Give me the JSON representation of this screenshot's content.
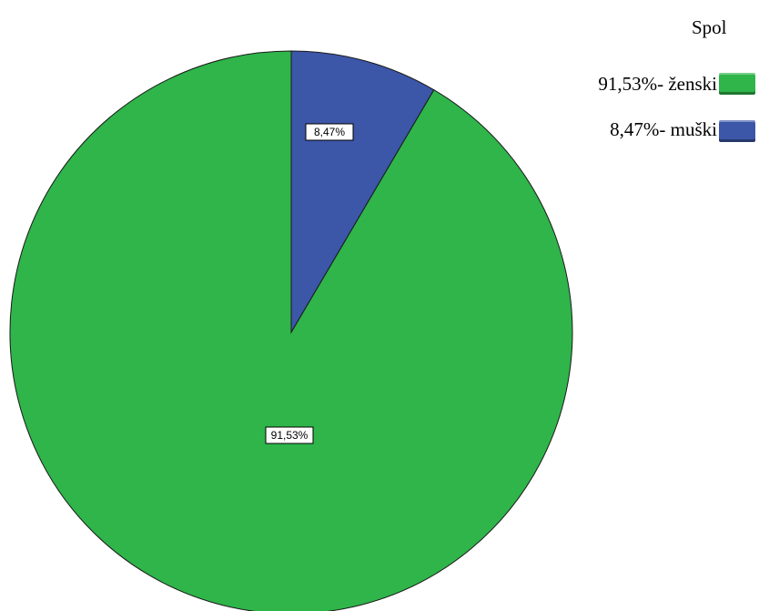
{
  "legend": {
    "title": "Spol",
    "items": [
      {
        "label": "91,53%- ženski",
        "color": "#2fb54a"
      },
      {
        "label": "8,47%- muški",
        "color": "#3c56a8"
      }
    ]
  },
  "chart_data": {
    "type": "pie",
    "categories": [
      "ženski",
      "muški"
    ],
    "values": [
      91.53,
      8.47
    ],
    "data_labels": [
      "91,53%",
      "8,47%"
    ],
    "colors": [
      "#2fb54a",
      "#3c56a8"
    ],
    "legend_title": "Spol",
    "legend_position": "top-right",
    "start_angle": "12 o'clock",
    "direction": "clockwise (muški first)"
  }
}
